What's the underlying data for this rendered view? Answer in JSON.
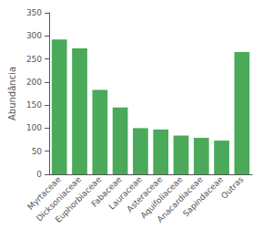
{
  "chart_data": {
    "type": "bar",
    "categories": [
      "Myrtaceae",
      "Dicksoniaceae",
      "Euphorbiaceae",
      "Fabaceae",
      "Lauraceae",
      "Asteraceae",
      "Aquifoliaceae",
      "Anacardiaceae",
      "Sapindaceae",
      "Outras"
    ],
    "values": [
      292,
      273,
      183,
      145,
      100,
      97,
      84,
      79,
      73,
      265
    ],
    "color": "#4aaa5a",
    "ylabel": "Abundância",
    "ylim": [
      0,
      350
    ],
    "yticks": [
      0,
      50,
      100,
      150,
      200,
      250,
      300,
      350
    ],
    "grid": false
  }
}
